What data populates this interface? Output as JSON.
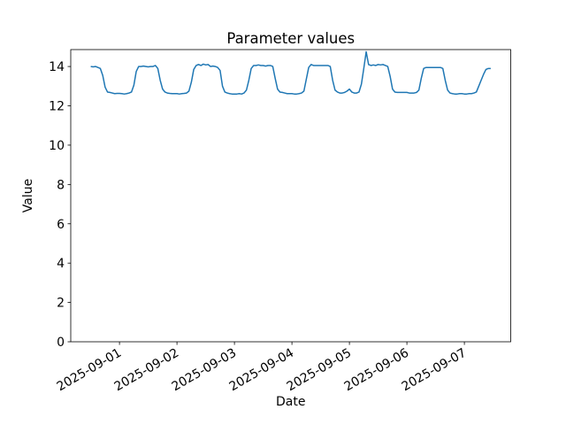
{
  "chart_data": {
    "type": "line",
    "title": "Parameter values",
    "xlabel": "Date",
    "ylabel": "Value",
    "grid": false,
    "legend": null,
    "x_tick_labels": [
      "2025-09-01",
      "2025-09-02",
      "2025-09-03",
      "2025-09-04",
      "2025-09-05",
      "2025-09-06",
      "2025-09-07"
    ],
    "x_tick_hours": [
      24,
      48,
      72,
      96,
      120,
      144,
      168
    ],
    "xlim_hours": [
      3.65,
      187.35
    ],
    "x_axis_epoch": "2025-08-31 00:00",
    "y_ticks": [
      0,
      2,
      4,
      6,
      8,
      10,
      12,
      14
    ],
    "ylim": [
      0,
      14.86
    ],
    "series": [
      {
        "name": "parameter-values",
        "color": "#1f77b4",
        "x_start": "2025-08-31 12:00",
        "x_start_hour": 12,
        "x_step_hours": 1,
        "x_end": "2025-09-07 11:00",
        "values": [
          14.0,
          13.98,
          14.0,
          13.95,
          13.9,
          13.55,
          12.95,
          12.7,
          12.68,
          12.65,
          12.62,
          12.63,
          12.63,
          12.62,
          12.6,
          12.62,
          12.65,
          12.7,
          13.05,
          13.75,
          14.0,
          14.0,
          14.02,
          14.0,
          13.98,
          14.0,
          14.0,
          14.05,
          13.9,
          13.3,
          12.85,
          12.7,
          12.65,
          12.63,
          12.62,
          12.62,
          12.62,
          12.6,
          12.62,
          12.63,
          12.65,
          12.75,
          13.2,
          13.85,
          14.05,
          14.1,
          14.05,
          14.12,
          14.08,
          14.1,
          14.0,
          14.02,
          14.0,
          13.95,
          13.8,
          13.0,
          12.7,
          12.65,
          12.62,
          12.6,
          12.6,
          12.6,
          12.62,
          12.6,
          12.65,
          12.8,
          13.3,
          13.9,
          14.05,
          14.05,
          14.08,
          14.05,
          14.05,
          14.02,
          14.05,
          14.05,
          14.0,
          13.4,
          12.85,
          12.7,
          12.68,
          12.65,
          12.62,
          12.62,
          12.62,
          12.6,
          12.6,
          12.62,
          12.65,
          12.75,
          13.35,
          13.95,
          14.1,
          14.05,
          14.05,
          14.05,
          14.05,
          14.05,
          14.05,
          14.05,
          14.0,
          13.3,
          12.8,
          12.7,
          12.65,
          12.65,
          12.68,
          12.75,
          12.85,
          12.7,
          12.65,
          12.65,
          12.7,
          13.1,
          13.9,
          14.75,
          14.1,
          14.05,
          14.08,
          14.05,
          14.1,
          14.08,
          14.1,
          14.05,
          14.0,
          13.5,
          12.85,
          12.7,
          12.68,
          12.68,
          12.68,
          12.68,
          12.68,
          12.65,
          12.65,
          12.65,
          12.68,
          12.8,
          13.4,
          13.9,
          13.95,
          13.95,
          13.95,
          13.95,
          13.95,
          13.95,
          13.95,
          13.9,
          13.3,
          12.8,
          12.65,
          12.62,
          12.6,
          12.6,
          12.62,
          12.62,
          12.6,
          12.6,
          12.62,
          12.62,
          12.65,
          12.7,
          13.0,
          13.3,
          13.6,
          13.85,
          13.9,
          13.9
        ]
      }
    ],
    "axis_color": "#000000",
    "background_color": "#ffffff"
  }
}
